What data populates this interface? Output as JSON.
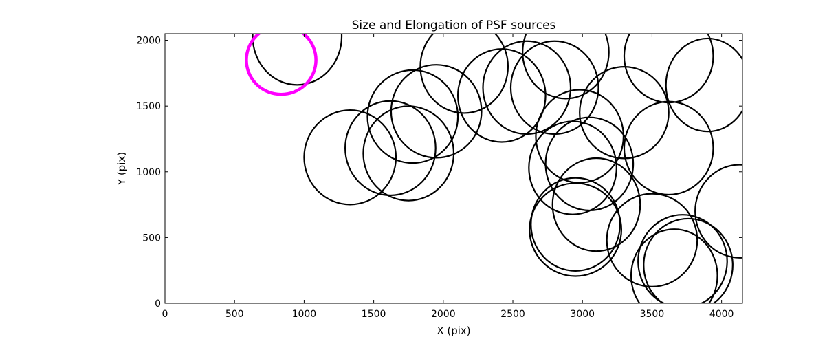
{
  "chart_data": {
    "type": "scatter",
    "title": "Size and Elongation of PSF sources",
    "xlabel": "X (pix)",
    "ylabel": "Y (pix)",
    "xlim": [
      0,
      4150
    ],
    "ylim": [
      0,
      2050
    ],
    "xticks": [
      0,
      500,
      1000,
      1500,
      2000,
      2500,
      3000,
      3500,
      4000
    ],
    "yticks": [
      0,
      500,
      1000,
      1500,
      2000
    ],
    "grid": false,
    "sources": [
      {
        "x": 950,
        "y": 2030,
        "w": 640,
        "h": 360,
        "angle": 0,
        "color": "#000000"
      },
      {
        "x": 835,
        "y": 1850,
        "w": 500,
        "h": 255,
        "angle": 0,
        "color": "#ff00ff"
      },
      {
        "x": 1330,
        "y": 1110,
        "w": 660,
        "h": 350,
        "angle": 0,
        "color": "#000000"
      },
      {
        "x": 1620,
        "y": 1180,
        "w": 650,
        "h": 350,
        "angle": 0,
        "color": "#000000"
      },
      {
        "x": 1750,
        "y": 1140,
        "w": 650,
        "h": 350,
        "angle": 0,
        "color": "#000000"
      },
      {
        "x": 1780,
        "y": 1420,
        "w": 650,
        "h": 345,
        "angle": 0,
        "color": "#000000"
      },
      {
        "x": 1950,
        "y": 1460,
        "w": 650,
        "h": 345,
        "angle": 0,
        "color": "#000000"
      },
      {
        "x": 2150,
        "y": 1800,
        "w": 630,
        "h": 345,
        "angle": 0,
        "color": "#000000"
      },
      {
        "x": 2420,
        "y": 1580,
        "w": 630,
        "h": 345,
        "angle": 0,
        "color": "#000000"
      },
      {
        "x": 2600,
        "y": 1640,
        "w": 630,
        "h": 345,
        "angle": 0,
        "color": "#000000"
      },
      {
        "x": 2800,
        "y": 1640,
        "w": 630,
        "h": 345,
        "angle": 0,
        "color": "#000000"
      },
      {
        "x": 2880,
        "y": 1910,
        "w": 620,
        "h": 345,
        "angle": 0,
        "color": "#000000"
      },
      {
        "x": 2980,
        "y": 1270,
        "w": 630,
        "h": 345,
        "angle": 0,
        "color": "#000000"
      },
      {
        "x": 2930,
        "y": 1030,
        "w": 630,
        "h": 345,
        "angle": 0,
        "color": "#000000"
      },
      {
        "x": 3050,
        "y": 1060,
        "w": 630,
        "h": 345,
        "angle": 0,
        "color": "#000000"
      },
      {
        "x": 3300,
        "y": 1450,
        "w": 640,
        "h": 340,
        "angle": 0,
        "color": "#000000"
      },
      {
        "x": 3620,
        "y": 1180,
        "w": 640,
        "h": 345,
        "angle": 0,
        "color": "#000000"
      },
      {
        "x": 3620,
        "y": 1880,
        "w": 640,
        "h": 345,
        "angle": 0,
        "color": "#000000"
      },
      {
        "x": 3900,
        "y": 1660,
        "w": 600,
        "h": 345,
        "angle": 0,
        "color": "#000000"
      },
      {
        "x": 4130,
        "y": 700,
        "w": 640,
        "h": 345,
        "angle": 0,
        "color": "#000000"
      },
      {
        "x": 2950,
        "y": 560,
        "w": 660,
        "h": 345,
        "angle": 0,
        "color": "#000000"
      },
      {
        "x": 2950,
        "y": 600,
        "w": 640,
        "h": 345,
        "angle": 0,
        "color": "#000000"
      },
      {
        "x": 3100,
        "y": 750,
        "w": 630,
        "h": 345,
        "angle": 0,
        "color": "#000000"
      },
      {
        "x": 3500,
        "y": 480,
        "w": 650,
        "h": 345,
        "angle": 0,
        "color": "#000000"
      },
      {
        "x": 3720,
        "y": 320,
        "w": 640,
        "h": 345,
        "angle": 0,
        "color": "#000000"
      },
      {
        "x": 3660,
        "y": 210,
        "w": 620,
        "h": 345,
        "angle": 0,
        "color": "#000000"
      },
      {
        "x": 3760,
        "y": 290,
        "w": 640,
        "h": 345,
        "angle": 0,
        "color": "#000000"
      }
    ]
  }
}
